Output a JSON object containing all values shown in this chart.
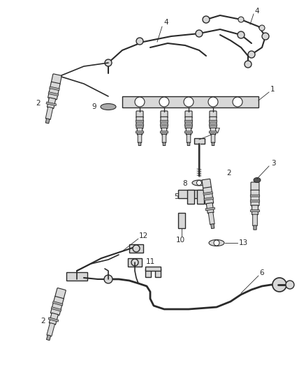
{
  "bg_color": "#ffffff",
  "line_color": "#2a2a2a",
  "figsize": [
    4.38,
    5.33
  ],
  "dpi": 100,
  "gray_fill": "#d8d8d8",
  "dark_fill": "#555555",
  "mid_fill": "#aaaaaa"
}
